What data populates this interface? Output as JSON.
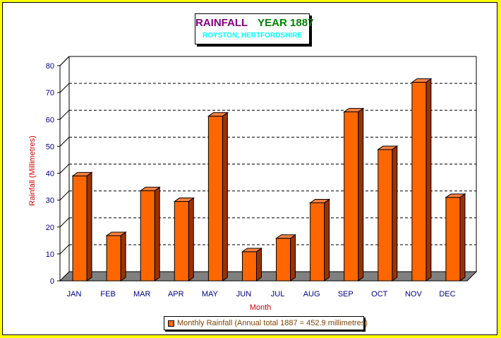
{
  "chart_data": {
    "type": "bar",
    "title": "RAINFALL",
    "title_year": "YEAR 1887",
    "subtitle": "ROYSTON, HERTFORDSHIRE",
    "xlabel": "Month",
    "ylabel": "Rainfall (Millimetres)",
    "categories": [
      "JAN",
      "FEB",
      "MAR",
      "APR",
      "MAY",
      "JUN",
      "JUL",
      "AUG",
      "SEP",
      "OCT",
      "NOV",
      "DEC"
    ],
    "series": [
      {
        "name": "Monthly Rainfall (Annual total 1887 = 452.9 millimetres)",
        "values": [
          39.0,
          16.8,
          33.5,
          29.5,
          61.2,
          10.8,
          15.8,
          29.0,
          62.8,
          48.8,
          73.8,
          31.0
        ]
      }
    ],
    "ylim": [
      0,
      80
    ],
    "yticks": [
      0,
      10,
      20,
      30,
      40,
      50,
      60,
      70,
      80
    ],
    "grid": true,
    "legend_position": "bottom",
    "colors": {
      "bar_front": "#ff6600",
      "bar_side": "#993300",
      "bar_top": "#ff8040",
      "floor": "#808080",
      "axis_text": "#000080",
      "xlabel": "#cc0000",
      "ylabel": "#cc0000",
      "background": "#ffff00"
    }
  }
}
